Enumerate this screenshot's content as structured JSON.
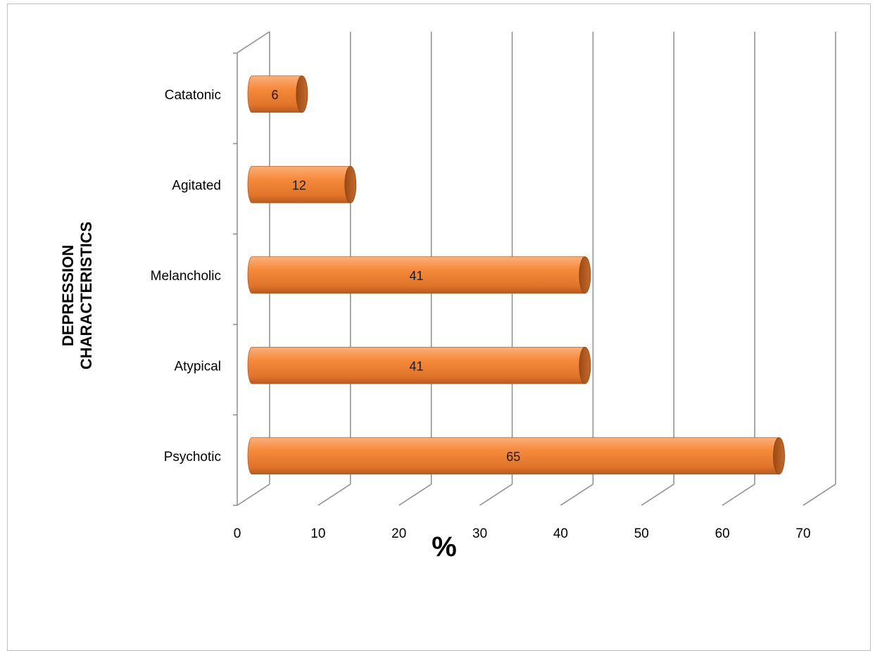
{
  "chart_data": {
    "type": "bar",
    "orientation": "horizontal",
    "style": "3d-cylinder",
    "categories": [
      "Psychotic",
      "Atypical",
      "Melancholic",
      "Agitated",
      "Catatonic"
    ],
    "values": [
      65,
      41,
      41,
      12,
      6
    ],
    "data_labels": [
      "65",
      "41",
      "41",
      "12",
      "6"
    ],
    "xlabel": "%",
    "ylabel_lines": [
      "DEPRESSION",
      "CHARACTERISTICS"
    ],
    "xlim": [
      0,
      70
    ],
    "xticks": [
      "0",
      "10",
      "20",
      "30",
      "40",
      "50",
      "60",
      "70"
    ],
    "grid": true,
    "legend": "none",
    "colors": {
      "bar": "#F58A3B",
      "bar_dark": "#B85A1C",
      "bar_light": "#FBB07A",
      "grid": "#8c8c8c",
      "axis": "#8c8c8c"
    }
  }
}
